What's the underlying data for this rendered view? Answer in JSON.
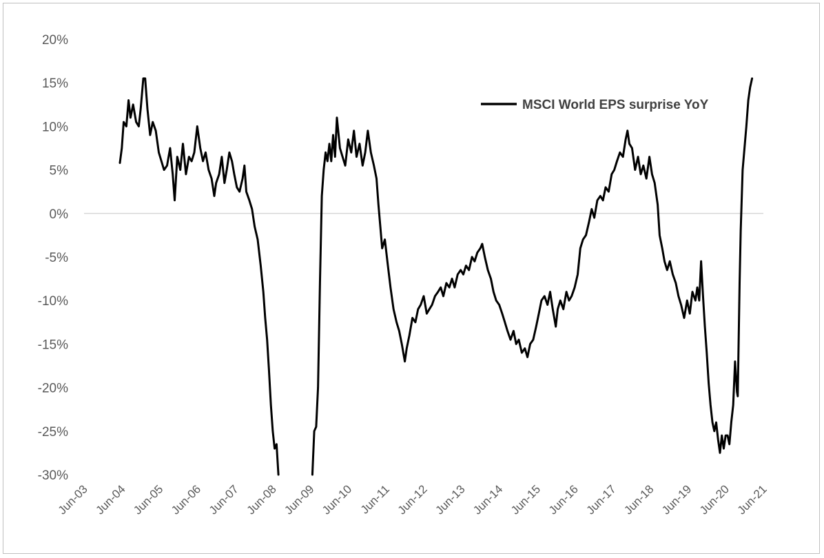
{
  "chart_data": {
    "type": "line",
    "title": "",
    "xlabel": "",
    "ylabel": "",
    "ylim": [
      -30,
      20
    ],
    "y_tick_labels": [
      "20%",
      "15%",
      "10%",
      "5%",
      "0%",
      "-5%",
      "-10%",
      "-15%",
      "-20%",
      "-25%",
      "-30%"
    ],
    "y_tick_values": [
      20,
      15,
      10,
      5,
      0,
      -5,
      -10,
      -15,
      -20,
      -25,
      -30
    ],
    "x_tick_labels": [
      "Jun-03",
      "Jun-04",
      "Jun-05",
      "Jun-06",
      "Jun-07",
      "Jun-08",
      "Jun-09",
      "Jun-10",
      "Jun-11",
      "Jun-12",
      "Jun-13",
      "Jun-14",
      "Jun-15",
      "Jun-16",
      "Jun-17",
      "Jun-18",
      "Jun-19",
      "Jun-20",
      "Jun-21"
    ],
    "x_tick_values": [
      2003.5,
      2004.5,
      2005.5,
      2006.5,
      2007.5,
      2008.5,
      2009.5,
      2010.5,
      2011.5,
      2012.5,
      2013.5,
      2014.5,
      2015.5,
      2016.5,
      2017.5,
      2018.5,
      2019.5,
      2020.5,
      2021.5
    ],
    "xlim": [
      2003.5,
      2021.5
    ],
    "x_unit": "year (decimal)",
    "grid": false,
    "zero_line": true,
    "legend_position": "top-right",
    "series": [
      {
        "name": "MSCI World EPS surprise YoY",
        "color": "#000000",
        "points": [
          [
            2004.45,
            5.8
          ],
          [
            2004.5,
            7.5
          ],
          [
            2004.55,
            10.5
          ],
          [
            2004.62,
            10.0
          ],
          [
            2004.68,
            13.0
          ],
          [
            2004.73,
            11.0
          ],
          [
            2004.8,
            12.5
          ],
          [
            2004.88,
            10.5
          ],
          [
            2004.95,
            10.0
          ],
          [
            2005.0,
            12.0
          ],
          [
            2005.07,
            15.5
          ],
          [
            2005.12,
            15.5
          ],
          [
            2005.18,
            12.0
          ],
          [
            2005.25,
            9.0
          ],
          [
            2005.32,
            10.5
          ],
          [
            2005.4,
            9.5
          ],
          [
            2005.48,
            7.0
          ],
          [
            2005.55,
            6.0
          ],
          [
            2005.62,
            5.0
          ],
          [
            2005.7,
            5.5
          ],
          [
            2005.78,
            7.5
          ],
          [
            2005.85,
            4.5
          ],
          [
            2005.9,
            1.5
          ],
          [
            2005.97,
            6.5
          ],
          [
            2006.05,
            5.0
          ],
          [
            2006.12,
            8.0
          ],
          [
            2006.2,
            4.5
          ],
          [
            2006.28,
            6.5
          ],
          [
            2006.35,
            6.0
          ],
          [
            2006.42,
            7.0
          ],
          [
            2006.5,
            10.0
          ],
          [
            2006.58,
            7.5
          ],
          [
            2006.65,
            6.0
          ],
          [
            2006.72,
            7.0
          ],
          [
            2006.8,
            5.0
          ],
          [
            2006.88,
            4.0
          ],
          [
            2006.95,
            2.0
          ],
          [
            2007.0,
            3.5
          ],
          [
            2007.08,
            4.5
          ],
          [
            2007.15,
            6.5
          ],
          [
            2007.22,
            3.5
          ],
          [
            2007.28,
            5.0
          ],
          [
            2007.35,
            7.0
          ],
          [
            2007.42,
            6.0
          ],
          [
            2007.48,
            4.5
          ],
          [
            2007.55,
            3.0
          ],
          [
            2007.62,
            2.5
          ],
          [
            2007.7,
            4.0
          ],
          [
            2007.75,
            5.5
          ],
          [
            2007.8,
            2.5
          ],
          [
            2007.88,
            1.5
          ],
          [
            2007.95,
            0.5
          ],
          [
            2008.02,
            -1.5
          ],
          [
            2008.1,
            -3.0
          ],
          [
            2008.18,
            -6.0
          ],
          [
            2008.25,
            -9.0
          ],
          [
            2008.3,
            -12.0
          ],
          [
            2008.35,
            -14.5
          ],
          [
            2008.4,
            -18.0
          ],
          [
            2008.45,
            -22.0
          ],
          [
            2008.5,
            -25.0
          ],
          [
            2008.55,
            -27.0
          ],
          [
            2008.6,
            -26.5
          ],
          [
            2008.65,
            -30.0
          ],
          [
            2009.55,
            -30.0
          ],
          [
            2009.6,
            -25.0
          ],
          [
            2009.65,
            -24.5
          ],
          [
            2009.7,
            -20.0
          ],
          [
            2009.75,
            -8.0
          ],
          [
            2009.8,
            2.0
          ],
          [
            2009.85,
            5.0
          ],
          [
            2009.9,
            7.0
          ],
          [
            2009.95,
            6.0
          ],
          [
            2010.0,
            8.0
          ],
          [
            2010.05,
            6.0
          ],
          [
            2010.1,
            9.0
          ],
          [
            2010.15,
            6.5
          ],
          [
            2010.2,
            11.0
          ],
          [
            2010.28,
            7.5
          ],
          [
            2010.35,
            6.5
          ],
          [
            2010.42,
            5.5
          ],
          [
            2010.5,
            8.5
          ],
          [
            2010.58,
            7.0
          ],
          [
            2010.65,
            9.5
          ],
          [
            2010.72,
            6.5
          ],
          [
            2010.8,
            8.0
          ],
          [
            2010.88,
            5.5
          ],
          [
            2010.95,
            7.0
          ],
          [
            2011.02,
            9.5
          ],
          [
            2011.1,
            7.0
          ],
          [
            2011.18,
            5.5
          ],
          [
            2011.25,
            4.0
          ],
          [
            2011.3,
            1.0
          ],
          [
            2011.35,
            -1.5
          ],
          [
            2011.4,
            -4.0
          ],
          [
            2011.47,
            -3.0
          ],
          [
            2011.55,
            -6.0
          ],
          [
            2011.62,
            -8.5
          ],
          [
            2011.7,
            -11.0
          ],
          [
            2011.78,
            -12.5
          ],
          [
            2011.85,
            -13.5
          ],
          [
            2011.92,
            -15.0
          ],
          [
            2012.0,
            -17.0
          ],
          [
            2012.05,
            -15.5
          ],
          [
            2012.12,
            -14.0
          ],
          [
            2012.2,
            -12.0
          ],
          [
            2012.28,
            -12.5
          ],
          [
            2012.35,
            -11.0
          ],
          [
            2012.42,
            -10.5
          ],
          [
            2012.5,
            -9.5
          ],
          [
            2012.58,
            -11.5
          ],
          [
            2012.65,
            -11.0
          ],
          [
            2012.72,
            -10.5
          ],
          [
            2012.8,
            -9.5
          ],
          [
            2012.88,
            -9.0
          ],
          [
            2012.95,
            -8.5
          ],
          [
            2013.02,
            -9.5
          ],
          [
            2013.1,
            -8.0
          ],
          [
            2013.18,
            -8.5
          ],
          [
            2013.25,
            -7.5
          ],
          [
            2013.32,
            -8.5
          ],
          [
            2013.4,
            -7.0
          ],
          [
            2013.48,
            -6.5
          ],
          [
            2013.55,
            -7.0
          ],
          [
            2013.62,
            -6.0
          ],
          [
            2013.7,
            -6.5
          ],
          [
            2013.78,
            -5.0
          ],
          [
            2013.85,
            -5.5
          ],
          [
            2013.92,
            -4.5
          ],
          [
            2014.0,
            -4.0
          ],
          [
            2014.05,
            -3.5
          ],
          [
            2014.12,
            -5.0
          ],
          [
            2014.2,
            -6.5
          ],
          [
            2014.28,
            -7.5
          ],
          [
            2014.35,
            -9.0
          ],
          [
            2014.42,
            -10.0
          ],
          [
            2014.5,
            -10.5
          ],
          [
            2014.58,
            -11.5
          ],
          [
            2014.65,
            -12.5
          ],
          [
            2014.72,
            -13.5
          ],
          [
            2014.8,
            -14.5
          ],
          [
            2014.88,
            -13.5
          ],
          [
            2014.95,
            -15.0
          ],
          [
            2015.02,
            -14.5
          ],
          [
            2015.1,
            -16.0
          ],
          [
            2015.18,
            -15.5
          ],
          [
            2015.25,
            -16.5
          ],
          [
            2015.32,
            -15.0
          ],
          [
            2015.4,
            -14.5
          ],
          [
            2015.48,
            -13.0
          ],
          [
            2015.55,
            -11.5
          ],
          [
            2015.62,
            -10.0
          ],
          [
            2015.7,
            -9.5
          ],
          [
            2015.78,
            -10.5
          ],
          [
            2015.85,
            -9.0
          ],
          [
            2015.92,
            -11.0
          ],
          [
            2016.0,
            -13.0
          ],
          [
            2016.05,
            -11.0
          ],
          [
            2016.12,
            -10.0
          ],
          [
            2016.2,
            -11.0
          ],
          [
            2016.28,
            -9.0
          ],
          [
            2016.35,
            -10.0
          ],
          [
            2016.42,
            -9.5
          ],
          [
            2016.5,
            -8.5
          ],
          [
            2016.58,
            -7.0
          ],
          [
            2016.65,
            -4.0
          ],
          [
            2016.72,
            -3.0
          ],
          [
            2016.8,
            -2.5
          ],
          [
            2016.88,
            -1.0
          ],
          [
            2016.95,
            0.5
          ],
          [
            2017.02,
            -0.5
          ],
          [
            2017.1,
            1.5
          ],
          [
            2017.18,
            2.0
          ],
          [
            2017.25,
            1.5
          ],
          [
            2017.32,
            3.0
          ],
          [
            2017.4,
            2.5
          ],
          [
            2017.48,
            4.5
          ],
          [
            2017.55,
            5.0
          ],
          [
            2017.62,
            6.0
          ],
          [
            2017.7,
            7.0
          ],
          [
            2017.78,
            6.5
          ],
          [
            2017.85,
            8.5
          ],
          [
            2017.9,
            9.5
          ],
          [
            2017.95,
            8.0
          ],
          [
            2018.02,
            7.5
          ],
          [
            2018.1,
            5.0
          ],
          [
            2018.18,
            6.5
          ],
          [
            2018.25,
            4.5
          ],
          [
            2018.32,
            5.5
          ],
          [
            2018.4,
            4.0
          ],
          [
            2018.48,
            6.5
          ],
          [
            2018.55,
            4.5
          ],
          [
            2018.62,
            3.5
          ],
          [
            2018.7,
            1.0
          ],
          [
            2018.75,
            -2.5
          ],
          [
            2018.82,
            -4.0
          ],
          [
            2018.88,
            -5.5
          ],
          [
            2018.95,
            -6.5
          ],
          [
            2019.02,
            -5.5
          ],
          [
            2019.1,
            -7.0
          ],
          [
            2019.18,
            -8.0
          ],
          [
            2019.25,
            -9.5
          ],
          [
            2019.32,
            -10.5
          ],
          [
            2019.4,
            -12.0
          ],
          [
            2019.48,
            -10.0
          ],
          [
            2019.55,
            -11.5
          ],
          [
            2019.62,
            -9.0
          ],
          [
            2019.7,
            -10.0
          ],
          [
            2019.75,
            -8.5
          ],
          [
            2019.8,
            -10.0
          ],
          [
            2019.85,
            -5.5
          ],
          [
            2019.9,
            -9.5
          ],
          [
            2019.95,
            -13.0
          ],
          [
            2020.0,
            -16.0
          ],
          [
            2020.05,
            -19.5
          ],
          [
            2020.1,
            -22.0
          ],
          [
            2020.15,
            -24.0
          ],
          [
            2020.2,
            -25.0
          ],
          [
            2020.25,
            -24.0
          ],
          [
            2020.3,
            -26.0
          ],
          [
            2020.35,
            -27.5
          ],
          [
            2020.4,
            -25.5
          ],
          [
            2020.45,
            -27.0
          ],
          [
            2020.5,
            -25.5
          ],
          [
            2020.55,
            -25.5
          ],
          [
            2020.6,
            -26.5
          ],
          [
            2020.65,
            -24.0
          ],
          [
            2020.7,
            -22.0
          ],
          [
            2020.75,
            -17.0
          ],
          [
            2020.8,
            -20.5
          ],
          [
            2020.82,
            -21.0
          ],
          [
            2020.87,
            -8.0
          ],
          [
            2020.9,
            -2.0
          ],
          [
            2020.95,
            5.0
          ],
          [
            2021.0,
            7.5
          ],
          [
            2021.05,
            10.0
          ],
          [
            2021.1,
            13.0
          ],
          [
            2021.15,
            14.5
          ],
          [
            2021.2,
            15.5
          ]
        ]
      }
    ]
  }
}
